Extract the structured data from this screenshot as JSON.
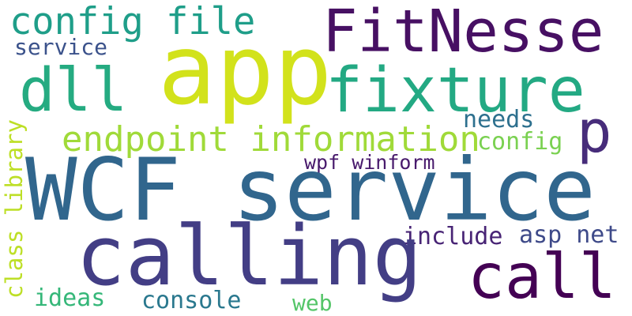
{
  "words": {
    "app": "app",
    "wcf_service": "WCF service",
    "calling": "calling",
    "fitnesse": "FitNesse",
    "fixture": "fixture",
    "call": "call",
    "config_file": "config file",
    "dll": "dll",
    "p": "p",
    "endpoint_information": "endpoint information",
    "needs": "needs",
    "config": "config",
    "wpf_winform": "wpf winform",
    "service": "service",
    "include": "include",
    "asp_net": "asp net",
    "console": "console",
    "web": "web",
    "ideas": "ideas",
    "class_library": "class library"
  },
  "colors": {
    "app": "#d2e21b",
    "wcf_service": "#31668d",
    "calling": "#433e85",
    "fitnesse": "#471063",
    "fixture": "#23a983",
    "call": "#440154",
    "config_file": "#1f9e89",
    "dll": "#25ab81",
    "p": "#472c7a",
    "endpoint_information": "#a0da39",
    "needs": "#2d708e",
    "config": "#7ad151",
    "wpf_winform": "#481a6c",
    "service": "#3b528b",
    "include": "#482475",
    "asp_net": "#3e4a89",
    "console": "#2a788e",
    "web": "#54c568",
    "ideas": "#35b779",
    "class_library": "#bddf26"
  }
}
